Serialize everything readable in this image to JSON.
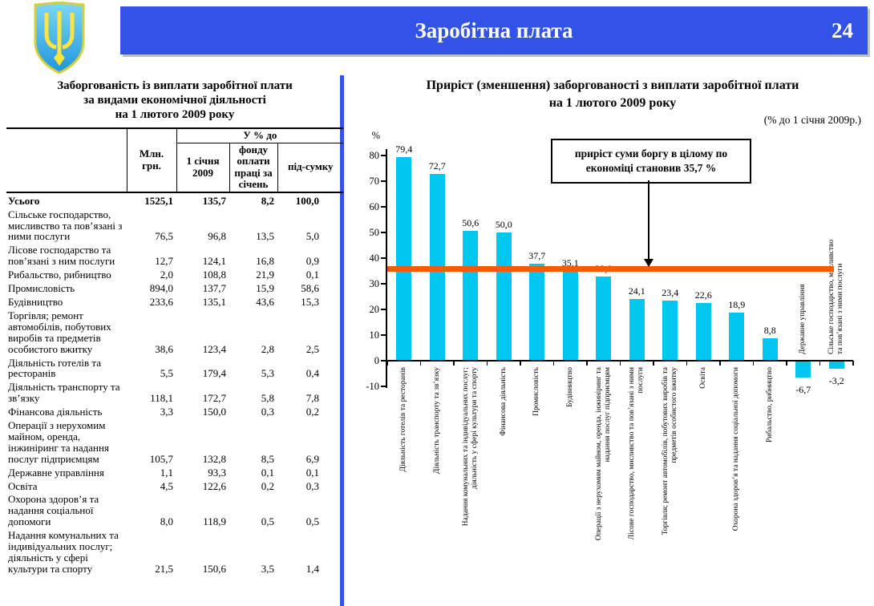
{
  "header": {
    "title": "Заробітна плата",
    "page_number": "24"
  },
  "colors": {
    "accent_blue": "#3353e8",
    "bar_cyan": "#00c6f0",
    "line_orange": "#f35b04",
    "shield_blue": "#38b4ec",
    "trident_yellow": "#ffe53b",
    "shield_border_yellow": "#d6cf3d"
  },
  "table_panel": {
    "title_lines": [
      "Заборгованість із виплати заробітної плати",
      "за видами економічної діяльності",
      "на 1 лютого 2009 року"
    ],
    "header": {
      "mln": "Млн. грн.",
      "group": "У % до",
      "sub_jan": "1 січня 2009",
      "sub_fund": "фонду оплати праці за січень",
      "sub_total": "під-сумку"
    },
    "rows": [
      {
        "label": "Усього",
        "mln": "1525,1",
        "jan": "135,7",
        "fund": "8,2",
        "total": "100,0",
        "bold": true
      },
      {
        "label": "Сільське господарство, мисливство та пов’язані з ними послуги",
        "mln": "76,5",
        "jan": "96,8",
        "fund": "13,5",
        "total": "5,0"
      },
      {
        "label": "Лісове господарство  та пов’язані з ним послуги",
        "mln": "12,7",
        "jan": "124,1",
        "fund": "16,8",
        "total": "0,9"
      },
      {
        "label": "Рибальство, рибництво",
        "mln": "2,0",
        "jan": "108,8",
        "fund": "21,9",
        "total": "0,1"
      },
      {
        "label": "Промисловість",
        "mln": "894,0",
        "jan": "137,7",
        "fund": "15,9",
        "total": "58,6"
      },
      {
        "label": "Будівництво",
        "mln": "233,6",
        "jan": "135,1",
        "fund": "43,6",
        "total": "15,3"
      },
      {
        "label": "Торгівля; ремонт автомобілів, побутових виробів та предметів особистого вжитку",
        "mln": "38,6",
        "jan": "123,4",
        "fund": "2,8",
        "total": "2,5"
      },
      {
        "label": "Діяльність готелів та ресторанів",
        "mln": "5,5",
        "jan": "179,4",
        "fund": "5,3",
        "total": "0,4"
      },
      {
        "label": "Діяльність транспорту та зв’язку",
        "mln": "118,1",
        "jan": "172,7",
        "fund": "5,8",
        "total": "7,8"
      },
      {
        "label": "Фінансова діяльність",
        "mln": "3,3",
        "jan": "150,0",
        "fund": "0,3",
        "total": "0,2"
      },
      {
        "label": "Операції з нерухомим майном, оренда, інжиніринг та надання послуг підприємцям",
        "mln": "105,7",
        "jan": "132,8",
        "fund": "8,5",
        "total": "6,9"
      },
      {
        "label": "Державне управління",
        "mln": "1,1",
        "jan": "93,3",
        "fund": "0,1",
        "total": "0,1"
      },
      {
        "label": "Освіта",
        "mln": "4,5",
        "jan": "122,6",
        "fund": "0,2",
        "total": "0,3"
      },
      {
        "label": "Охорона здоров’я та надання соціальної допомоги",
        "mln": "8,0",
        "jan": "118,9",
        "fund": "0,5",
        "total": "0,5"
      },
      {
        "label": "Надання комунальних та індивідуальних послуг; діяльність у сфері культури та спорту",
        "mln": "21,5",
        "jan": "150,6",
        "fund": "3,5",
        "total": "1,4"
      }
    ]
  },
  "chart_data": {
    "type": "bar",
    "title_lines": [
      "Приріст (зменшення) заборгованості з виплати заробітної плати",
      "на 1 лютого 2009 року"
    ],
    "subtitle": "(% до 1 січня 2009р.)",
    "ylabel": "%",
    "ylim": [
      -10,
      80
    ],
    "ytick_step": 10,
    "grid": false,
    "legend": "none",
    "bar_color": "#00c6f0",
    "reference_line": {
      "value": 35.7,
      "color": "#f35b04"
    },
    "annotation_lines": [
      "приріст суми боргу в цілому по",
      "економіці становив 35,7 %"
    ],
    "categories": [
      [
        "Діяльність готелів та ресторанів"
      ],
      [
        "Діяльність транспорту та зв’язку"
      ],
      [
        "Надання комунальних та індивідуальних послуг;",
        "діяльність у сфері культури та спорту"
      ],
      [
        "Фінансова діяльність"
      ],
      [
        "Промисловість"
      ],
      [
        "Будівництво"
      ],
      [
        "Операції з нерухомим майном, оренда, інжиніринг та",
        "надання послуг підприємцям"
      ],
      [
        "Лісове господарство, мисливство та пов’язані з ними",
        "послуги"
      ],
      [
        "Торгівля; ремонт автомобілів, побутових виробів та",
        "предметів особистого вжитку"
      ],
      [
        "Освіта"
      ],
      [
        "Охорона здоров’я та надання соціальної допомоги"
      ],
      [
        "Рибальство, рибництво"
      ],
      [
        "Державне управління"
      ],
      [
        "Сільське господарство, мисливство",
        "та пов’язані з ними послуги"
      ]
    ],
    "values": [
      79.4,
      72.7,
      50.6,
      50.0,
      37.7,
      35.1,
      32.8,
      24.1,
      23.4,
      22.6,
      18.9,
      8.8,
      -6.7,
      -3.2
    ],
    "value_labels": [
      "79,4",
      "72,7",
      "50,6",
      "50,0",
      "37,7",
      "35,1",
      "32,8",
      "24,1",
      "23,4",
      "22,6",
      "18,9",
      "8,8",
      "-6,7",
      "-3,2"
    ]
  }
}
